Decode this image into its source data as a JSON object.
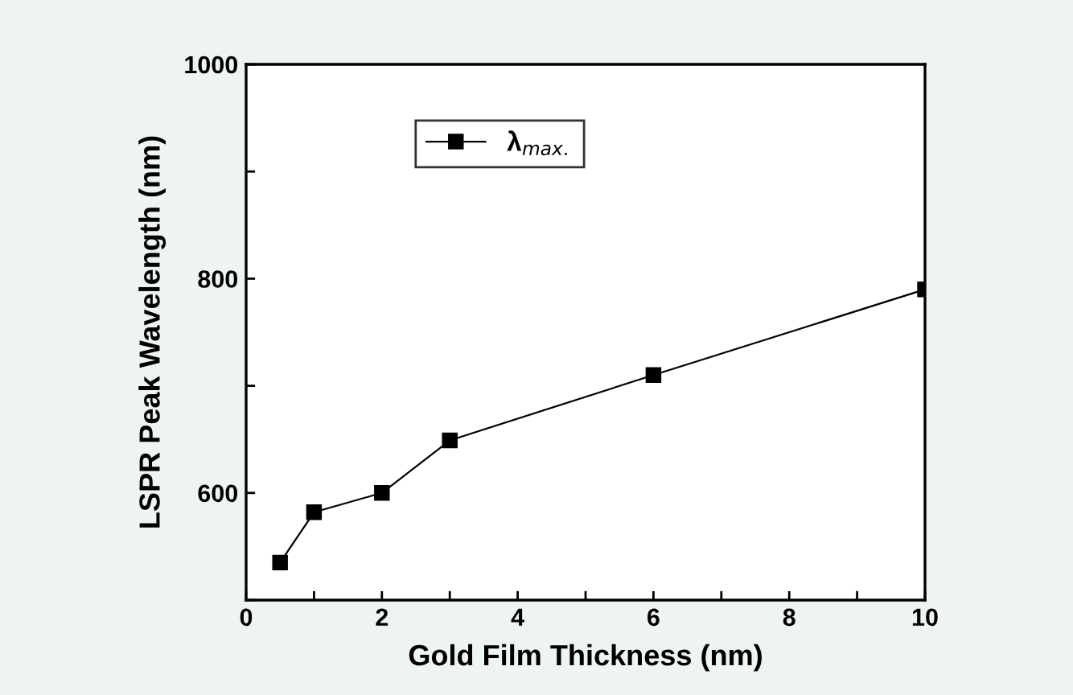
{
  "chart_data": {
    "type": "line",
    "xlabel": "Gold Film Thickness (nm)",
    "ylabel": "LSPR Peak Wavelength (nm)",
    "x": [
      0.5,
      1,
      2,
      3,
      6,
      10
    ],
    "series": [
      {
        "name": "λ$_{max.}$",
        "color": "#000000",
        "values": [
          535,
          582,
          600,
          649,
          710,
          790
        ]
      }
    ],
    "xlim": [
      0,
      10
    ],
    "ylim": [
      500,
      1000
    ],
    "xticks": [
      0,
      {
        "value": 1,
        "label": null
      },
      2,
      {
        "value": 3,
        "label": null
      },
      4,
      {
        "value": 5,
        "label": null
      },
      6,
      {
        "value": 7,
        "label": null
      },
      8,
      {
        "value": 9,
        "label": null
      },
      10
    ],
    "yticks": [
      {
        "value": 500,
        "label": null
      },
      600,
      {
        "value": 700,
        "label": null
      },
      800,
      {
        "value": 900,
        "label": null
      },
      1000
    ],
    "marker": "square",
    "line_style": "solid",
    "legend": "top left",
    "grid": false
  }
}
